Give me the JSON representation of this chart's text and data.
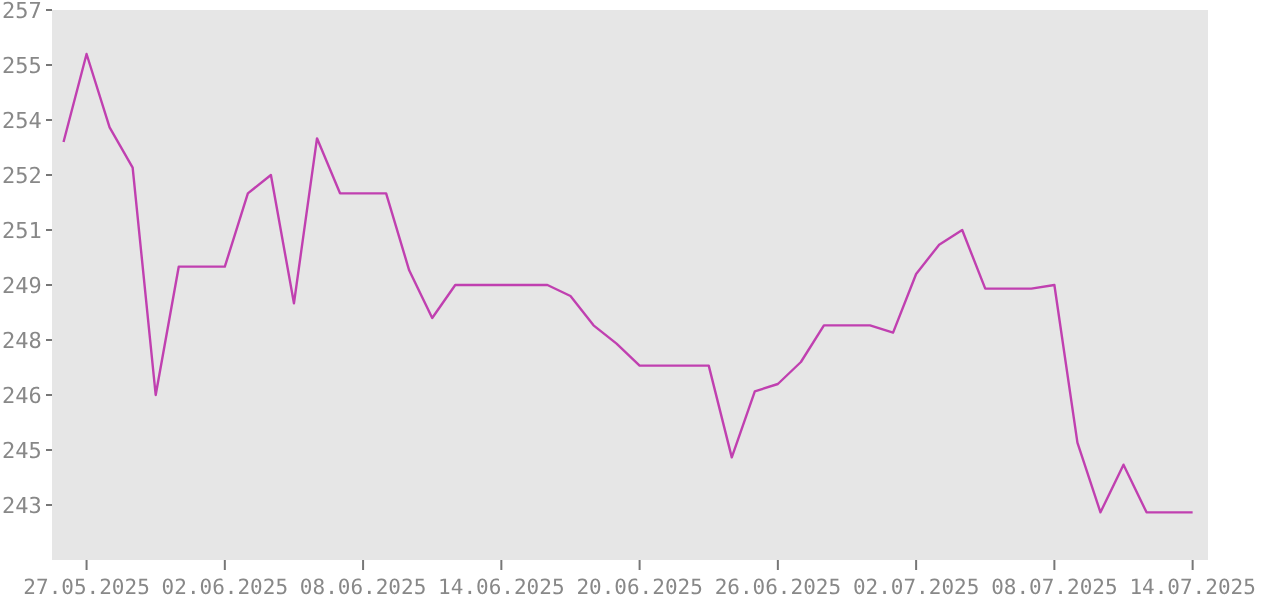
{
  "chart_data": {
    "type": "line",
    "x": [
      "2025-05-26",
      "2025-05-27",
      "2025-05-28",
      "2025-05-29",
      "2025-05-30",
      "2025-05-31",
      "2025-06-01",
      "2025-06-02",
      "2025-06-03",
      "2025-06-04",
      "2025-06-05",
      "2025-06-06",
      "2025-06-07",
      "2025-06-08",
      "2025-06-09",
      "2025-06-10",
      "2025-06-11",
      "2025-06-12",
      "2025-06-13",
      "2025-06-14",
      "2025-06-15",
      "2025-06-16",
      "2025-06-17",
      "2025-06-18",
      "2025-06-19",
      "2025-06-20",
      "2025-06-21",
      "2025-06-22",
      "2025-06-23",
      "2025-06-24",
      "2025-06-25",
      "2025-06-26",
      "2025-06-27",
      "2025-06-28",
      "2025-06-29",
      "2025-06-30",
      "2025-07-01",
      "2025-07-02",
      "2025-07-03",
      "2025-07-04",
      "2025-07-05",
      "2025-07-06",
      "2025-07-07",
      "2025-07-08",
      "2025-07-09",
      "2025-07-10",
      "2025-07-11",
      "2025-07-12",
      "2025-07-13",
      "2025-07-14"
    ],
    "series": [
      {
        "color": "#c040b0",
        "values": [
          253.4,
          255.8,
          253.8,
          252.7,
          246.5,
          250.0,
          250.0,
          250.0,
          252.0,
          252.5,
          249.0,
          253.5,
          252.0,
          252.0,
          252.0,
          249.9,
          248.6,
          249.5,
          249.5,
          249.5,
          249.5,
          249.5,
          249.2,
          248.4,
          247.9,
          247.3,
          247.3,
          247.3,
          247.3,
          244.8,
          246.6,
          246.8,
          247.4,
          248.4,
          248.4,
          248.4,
          248.2,
          249.8,
          250.6,
          251.0,
          249.4,
          249.4,
          249.4,
          249.5,
          245.2,
          243.3,
          244.6,
          243.3,
          243.3,
          243.3
        ]
      }
    ],
    "xlim": [
      "2025-05-25T12:00",
      "2025-07-14T16:00"
    ],
    "xticks": [
      {
        "value": "2025-05-27",
        "label": "27.05.2025"
      },
      {
        "value": "2025-06-02",
        "label": "02.06.2025"
      },
      {
        "value": "2025-06-08",
        "label": "08.06.2025"
      },
      {
        "value": "2025-06-14",
        "label": "14.06.2025"
      },
      {
        "value": "2025-06-20",
        "label": "20.06.2025"
      },
      {
        "value": "2025-06-26",
        "label": "26.06.2025"
      },
      {
        "value": "2025-07-02",
        "label": "02.07.2025"
      },
      {
        "value": "2025-07-08",
        "label": "08.07.2025"
      },
      {
        "value": "2025-07-14",
        "label": "14.07.2025"
      }
    ],
    "ylim": [
      242,
      257
    ],
    "yticks": [
      {
        "value": 243.5,
        "label": "243"
      },
      {
        "value": 245,
        "label": "245"
      },
      {
        "value": 246.5,
        "label": "246"
      },
      {
        "value": 248,
        "label": "248"
      },
      {
        "value": 249.5,
        "label": "249"
      },
      {
        "value": 251,
        "label": "251"
      },
      {
        "value": 252.5,
        "label": "252"
      },
      {
        "value": 254,
        "label": "254"
      },
      {
        "value": 255.5,
        "label": "255"
      },
      {
        "value": 257,
        "label": "257"
      }
    ],
    "grid": false,
    "marker": "none",
    "line_style": "solid"
  }
}
